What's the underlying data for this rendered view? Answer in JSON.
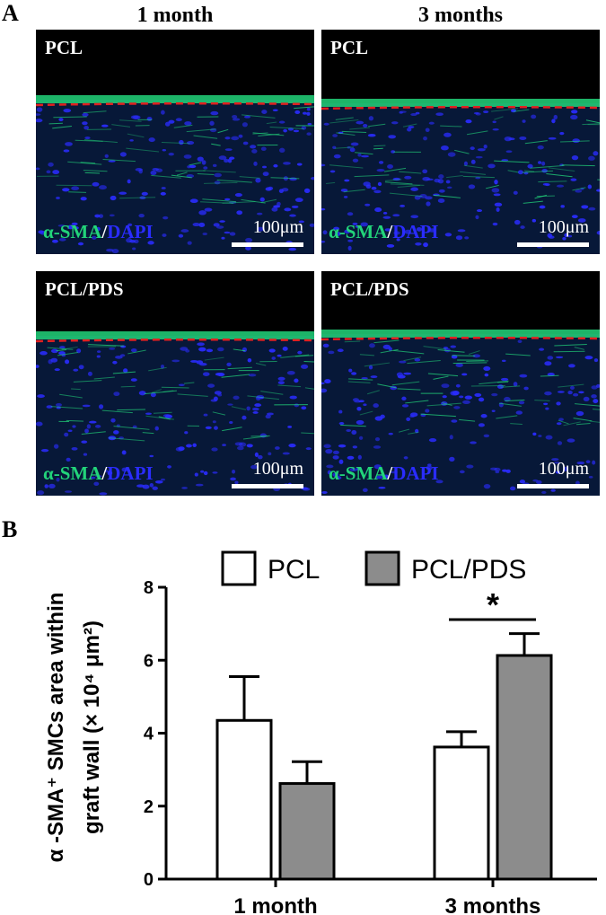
{
  "panel_a": {
    "letter": "A",
    "col_titles": [
      "1 month",
      "3 months"
    ],
    "images": [
      {
        "label": "PCL",
        "stain": [
          "α-SMA",
          "/",
          "DAPI"
        ],
        "scale": "100μm"
      },
      {
        "label": "PCL",
        "stain": [
          "α-SMA",
          "/",
          "DAPI"
        ],
        "scale": "100μm"
      },
      {
        "label": "PCL/PDS",
        "stain": [
          "α-SMA",
          "/",
          "DAPI"
        ],
        "scale": "100μm"
      },
      {
        "label": "PCL/PDS",
        "stain": [
          "α-SMA",
          "/",
          "DAPI"
        ],
        "scale": "100μm"
      }
    ],
    "colors": {
      "green": "#22d47a",
      "blue": "#2a2cff",
      "dash": "#e02020"
    }
  },
  "panel_b": {
    "letter": "B"
  },
  "chart_data": {
    "type": "bar",
    "categories": [
      "1 month",
      "3 months"
    ],
    "series": [
      {
        "name": "PCL",
        "values": [
          4.35,
          3.62
        ],
        "errors": [
          1.2,
          0.42
        ],
        "color": "#ffffff"
      },
      {
        "name": "PCL/PDS",
        "values": [
          2.62,
          6.13
        ],
        "errors": [
          0.6,
          0.6
        ],
        "color": "#8c8c8c"
      }
    ],
    "ylabel_lines": [
      "α -SMA⁺ SMCs area within",
      "graft wall (× 10⁴ μm²)"
    ],
    "yticks": [
      0,
      2,
      4,
      6,
      8
    ],
    "ylim": [
      0,
      8
    ],
    "annotation": "*",
    "legend_position": "top"
  }
}
